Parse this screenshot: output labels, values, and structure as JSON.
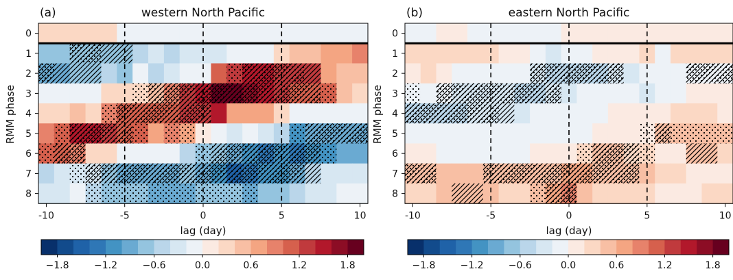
{
  "chart_data": [
    {
      "type": "heatmap",
      "panel_label": "(a)",
      "title": "western North Pacific",
      "xlabel": "lag (day)",
      "ylabel": "RMM phase",
      "x": [
        -10,
        -9,
        -8,
        -7,
        -6,
        -5,
        -4,
        -3,
        -2,
        -1,
        0,
        1,
        2,
        3,
        4,
        5,
        6,
        7,
        8,
        9,
        10
      ],
      "y": [
        0,
        1,
        2,
        3,
        4,
        5,
        6,
        7,
        8
      ],
      "xticks": [
        -10,
        -5,
        0,
        5,
        10
      ],
      "ytick_labels": [
        "0",
        "1",
        "2",
        "3",
        "4",
        "5",
        "6",
        "7",
        "8"
      ],
      "xlim": [
        -10.5,
        10.5
      ],
      "vlines": [
        -5,
        0,
        5
      ],
      "hline_between_phase": [
        0,
        1
      ],
      "values": [
        [
          0.2,
          0.2,
          0.2,
          0.2,
          0.2,
          -0.1,
          -0.1,
          -0.1,
          -0.1,
          -0.1,
          -0.1,
          -0.1,
          -0.1,
          -0.1,
          -0.1,
          -0.1,
          -0.1,
          -0.1,
          -0.1,
          -0.1,
          -0.1
        ],
        [
          -0.7,
          -0.7,
          -0.7,
          -0.8,
          -0.8,
          -0.7,
          -0.6,
          -0.4,
          -0.6,
          -0.4,
          -0.3,
          -0.3,
          -0.2,
          -0.2,
          -0.2,
          0.2,
          0.4,
          0.5,
          0.6,
          0.6,
          0.9
        ],
        [
          -1.0,
          -1.0,
          -0.8,
          -0.7,
          -0.5,
          -0.7,
          -0.2,
          -0.6,
          -0.4,
          -0.2,
          -0.1,
          1.1,
          1.3,
          1.4,
          1.4,
          1.3,
          1.2,
          1.3,
          0.7,
          0.5,
          0.4
        ],
        [
          -0.1,
          -0.1,
          -0.1,
          -0.1,
          0.2,
          0.3,
          0.3,
          0.5,
          0.9,
          1.2,
          1.4,
          1.8,
          1.8,
          1.7,
          1.4,
          1.3,
          1.0,
          1.0,
          1.0,
          0.4,
          0.2
        ],
        [
          0.2,
          0.3,
          0.5,
          0.3,
          0.9,
          1.1,
          1.1,
          1.0,
          1.1,
          1.2,
          1.3,
          1.4,
          0.7,
          0.7,
          0.6,
          0.2,
          -0.1,
          -0.1,
          -0.2,
          -0.2,
          -0.2
        ],
        [
          0.8,
          1.0,
          1.5,
          1.5,
          1.3,
          1.1,
          1.1,
          0.7,
          0.8,
          0.7,
          0.1,
          -0.1,
          -0.3,
          -0.2,
          -0.4,
          -0.6,
          -1.1,
          -1.0,
          -1.0,
          -1.0,
          -1.0
        ],
        [
          1.0,
          1.0,
          0.8,
          0.2,
          0.3,
          -0.1,
          -0.1,
          -0.1,
          -0.1,
          -0.6,
          -0.8,
          -0.8,
          -1.0,
          -1.2,
          -1.4,
          -1.1,
          -1.3,
          -1.1,
          -1.1,
          -1.0,
          -1.0
        ],
        [
          -0.5,
          -0.4,
          -0.3,
          -0.4,
          -0.7,
          -0.9,
          -1.0,
          -1.0,
          -0.9,
          -0.8,
          -0.9,
          -1.2,
          -1.5,
          -1.4,
          -1.2,
          -1.1,
          -0.9,
          -0.5,
          -0.4,
          -0.4,
          -0.3
        ],
        [
          -0.3,
          -0.3,
          -0.2,
          -0.5,
          -0.7,
          -0.8,
          -0.8,
          -1.0,
          -0.9,
          -0.9,
          -0.8,
          -0.7,
          -0.8,
          -0.9,
          -0.8,
          -0.8,
          -0.6,
          -0.4,
          -0.3,
          -0.2,
          -0.2
        ]
      ],
      "hatch": [
        [
          0,
          0,
          0,
          0,
          0,
          0,
          0,
          0,
          0,
          0,
          0,
          0,
          0,
          0,
          0,
          0,
          0,
          0,
          0,
          0,
          0
        ],
        [
          0,
          0,
          3,
          3,
          2,
          2,
          0,
          0,
          0,
          0,
          0,
          0,
          0,
          0,
          0,
          0,
          0,
          0,
          0,
          0,
          0
        ],
        [
          3,
          2,
          2,
          2,
          0,
          0,
          0,
          0,
          0,
          0,
          0,
          0,
          1,
          3,
          3,
          3,
          3,
          2,
          0,
          0,
          0
        ],
        [
          0,
          0,
          0,
          0,
          0,
          0,
          1,
          3,
          3,
          3,
          3,
          3,
          3,
          3,
          3,
          3,
          3,
          3,
          1,
          0,
          0
        ],
        [
          0,
          0,
          0,
          0,
          1,
          3,
          3,
          3,
          3,
          3,
          3,
          0,
          0,
          0,
          0,
          0,
          0,
          0,
          0,
          0,
          0
        ],
        [
          0,
          1,
          3,
          3,
          3,
          3,
          1,
          0,
          1,
          1,
          0,
          0,
          0,
          0,
          0,
          0,
          1,
          3,
          3,
          3,
          3
        ],
        [
          1,
          3,
          3,
          0,
          0,
          0,
          0,
          0,
          0,
          0,
          1,
          3,
          3,
          3,
          3,
          3,
          3,
          3,
          1,
          0,
          0
        ],
        [
          0,
          0,
          1,
          3,
          3,
          3,
          3,
          3,
          3,
          3,
          3,
          3,
          3,
          3,
          3,
          3,
          3,
          2,
          0,
          0,
          0
        ],
        [
          0,
          0,
          0,
          1,
          1,
          1,
          1,
          1,
          1,
          1,
          1,
          1,
          1,
          1,
          0,
          0,
          0,
          0,
          0,
          0,
          0
        ]
      ]
    },
    {
      "type": "heatmap",
      "panel_label": "(b)",
      "title": "eastern North Pacific",
      "xlabel": "lag (day)",
      "ylabel": "RMM phase",
      "x": [
        -10,
        -9,
        -8,
        -7,
        -6,
        -5,
        -4,
        -3,
        -2,
        -1,
        0,
        1,
        2,
        3,
        4,
        5,
        6,
        7,
        8,
        9,
        10
      ],
      "y": [
        0,
        1,
        2,
        3,
        4,
        5,
        6,
        7,
        8
      ],
      "xticks": [
        -10,
        -5,
        0,
        5,
        10
      ],
      "ytick_labels": [
        "0",
        "1",
        "2",
        "3",
        "4",
        "5",
        "6",
        "7",
        "8"
      ],
      "xlim": [
        -10.5,
        10.5
      ],
      "vlines": [
        -5,
        0,
        5
      ],
      "hline_between_phase": [
        0,
        1
      ],
      "values": [
        [
          -0.1,
          -0.1,
          0.1,
          0.1,
          -0.1,
          -0.1,
          -0.1,
          -0.1,
          -0.1,
          -0.1,
          0.1,
          0.1,
          0.1,
          0.1,
          0.1,
          0.1,
          0.1,
          0.1,
          0.1,
          0.1,
          0.1
        ],
        [
          0.3,
          0.3,
          0.2,
          0.2,
          0.2,
          0.2,
          0.1,
          0.1,
          -0.1,
          -0.3,
          -0.1,
          -0.1,
          0.1,
          0.1,
          0.1,
          0.2,
          -0.1,
          0.2,
          0.3,
          0.2,
          0.2
        ],
        [
          0.1,
          0.2,
          0.1,
          -0.1,
          -0.1,
          -0.1,
          -0.1,
          -0.1,
          -0.4,
          -0.5,
          -0.5,
          -0.5,
          -0.5,
          -0.4,
          -0.3,
          -0.1,
          -0.1,
          -0.1,
          -0.2,
          -0.2,
          -0.2
        ],
        [
          -0.2,
          -0.2,
          -0.2,
          -0.3,
          -0.3,
          -0.3,
          -0.4,
          -0.5,
          -0.5,
          -0.4,
          -0.3,
          -0.1,
          -0.1,
          -0.1,
          -0.1,
          -0.3,
          -0.1,
          -0.1,
          0.1,
          0.1,
          0.1
        ],
        [
          -0.6,
          -0.6,
          -0.5,
          -0.5,
          -0.4,
          -0.3,
          -0.3,
          -0.3,
          -0.2,
          -0.2,
          -0.2,
          -0.1,
          -0.1,
          0.1,
          0.1,
          0.1,
          0.1,
          0.2,
          0.2,
          0.2,
          0.1
        ],
        [
          -0.1,
          -0.1,
          -0.1,
          -0.1,
          -0.2,
          -0.2,
          -0.2,
          -0.1,
          -0.1,
          -0.1,
          -0.1,
          -0.1,
          0.1,
          0.1,
          0.1,
          0.1,
          0.4,
          0.4,
          0.5,
          0.5,
          0.5
        ],
        [
          0.1,
          0.1,
          -0.1,
          -0.1,
          -0.1,
          -0.1,
          -0.1,
          -0.1,
          0.1,
          0.1,
          0.1,
          0.2,
          0.4,
          0.4,
          0.3,
          0.3,
          0.1,
          0.1,
          0.4,
          0.4,
          0.2
        ],
        [
          0.5,
          0.5,
          0.5,
          0.4,
          0.4,
          0.4,
          0.4,
          0.5,
          0.5,
          0.5,
          0.6,
          0.6,
          0.5,
          0.5,
          0.5,
          0.4,
          0.2,
          0.2,
          0.1,
          0.1,
          0.1
        ],
        [
          0.2,
          0.3,
          0.4,
          0.5,
          0.4,
          0.4,
          0.3,
          0.3,
          0.5,
          0.7,
          0.8,
          0.4,
          0.3,
          0.2,
          0.2,
          0.2,
          0.1,
          0.1,
          0.1,
          0.2,
          0.2
        ]
      ],
      "hatch": [
        [
          0,
          0,
          0,
          0,
          0,
          0,
          0,
          0,
          0,
          0,
          0,
          0,
          0,
          0,
          0,
          0,
          0,
          0,
          0,
          0,
          0
        ],
        [
          0,
          0,
          0,
          0,
          0,
          0,
          0,
          0,
          0,
          0,
          0,
          0,
          0,
          0,
          0,
          0,
          0,
          0,
          0,
          0,
          0
        ],
        [
          0,
          0,
          0,
          0,
          0,
          0,
          0,
          0,
          3,
          3,
          3,
          3,
          3,
          3,
          0,
          0,
          0,
          0,
          3,
          3,
          3
        ],
        [
          1,
          0,
          3,
          3,
          3,
          3,
          3,
          3,
          3,
          3,
          0,
          0,
          0,
          0,
          0,
          0,
          0,
          0,
          0,
          0,
          0
        ],
        [
          3,
          3,
          3,
          3,
          3,
          3,
          2,
          0,
          0,
          0,
          0,
          0,
          0,
          0,
          0,
          0,
          0,
          0,
          0,
          0,
          0
        ],
        [
          0,
          0,
          0,
          0,
          0,
          0,
          0,
          0,
          0,
          0,
          0,
          0,
          0,
          0,
          0,
          1,
          3,
          1,
          1,
          1,
          1
        ],
        [
          0,
          0,
          0,
          0,
          0,
          0,
          0,
          0,
          0,
          0,
          0,
          1,
          3,
          3,
          3,
          1,
          0,
          0,
          2,
          2,
          0
        ],
        [
          3,
          3,
          0,
          0,
          0,
          3,
          3,
          3,
          3,
          3,
          3,
          3,
          3,
          3,
          3,
          0,
          0,
          0,
          0,
          0,
          0
        ],
        [
          0,
          0,
          0,
          2,
          2,
          0,
          0,
          0,
          1,
          3,
          3,
          0,
          0,
          0,
          0,
          0,
          0,
          0,
          0,
          0,
          0
        ]
      ]
    }
  ],
  "colorbar": {
    "tick_labels": [
      "−1.8",
      "−1.2",
      "−0.6",
      "0.0",
      "0.6",
      "1.2",
      "1.8"
    ],
    "tick_values": [
      -1.8,
      -1.2,
      -0.6,
      0.0,
      0.6,
      1.2,
      1.8
    ],
    "range": [
      -2.0,
      2.0
    ],
    "colors": [
      "#08306b",
      "#124b8c",
      "#1f62a8",
      "#2f77b6",
      "#4393c3",
      "#6aaad2",
      "#94c4df",
      "#bad6ea",
      "#d7e7f2",
      "#edf2f7",
      "#fbeae2",
      "#fbd8c4",
      "#f8bfa4",
      "#f4a582",
      "#e7826b",
      "#d6604d",
      "#c03a3d",
      "#b2182b",
      "#8c0d25",
      "#67001f"
    ]
  }
}
